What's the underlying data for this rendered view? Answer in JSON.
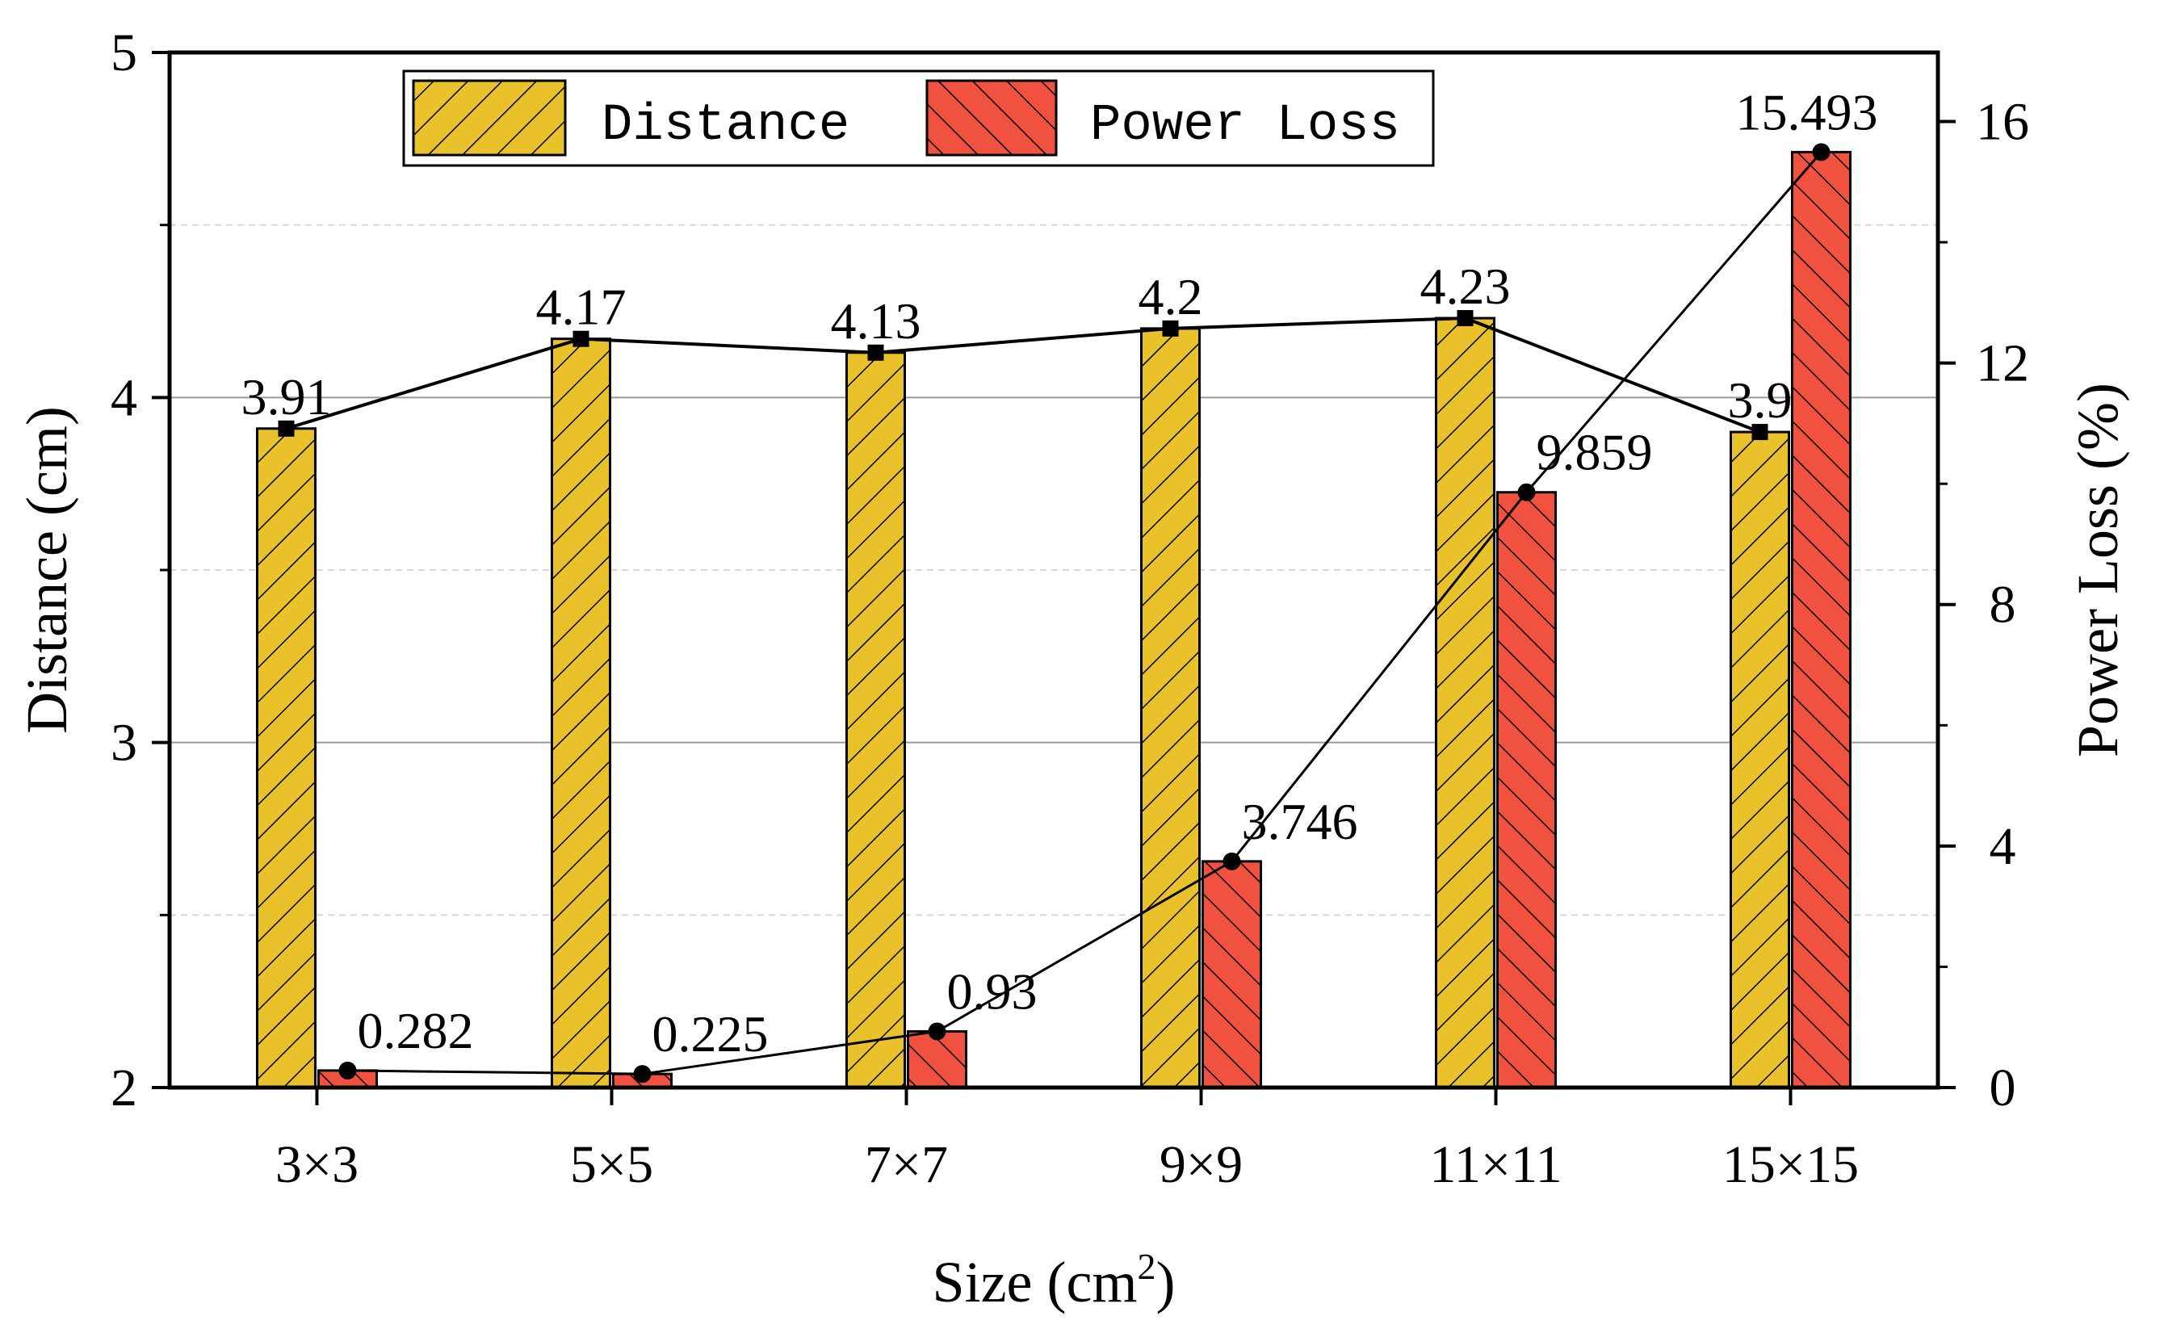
{
  "chart_data": {
    "type": "bar",
    "categories": [
      "3×3",
      "5×5",
      "7×7",
      "9×9",
      "11×11",
      "15×15"
    ],
    "series": [
      {
        "name": "Distance",
        "axis": "left",
        "values": [
          3.91,
          4.17,
          4.13,
          4.2,
          4.23,
          3.9
        ],
        "labels": [
          "3.91",
          "4.17",
          "4.13",
          "4.2",
          "4.23",
          "3.9"
        ],
        "color": "#E9C22B",
        "marker": "square",
        "connected_line": true
      },
      {
        "name": "Power Loss",
        "axis": "right",
        "values": [
          0.282,
          0.225,
          0.93,
          3.746,
          9.859,
          15.493
        ],
        "labels": [
          "0.282",
          "0.225",
          "0.93",
          "3.746",
          "9.859",
          "15.493"
        ],
        "color": "#F0523F",
        "marker": "circle",
        "connected_line": true
      }
    ],
    "xlabel": "Size (cm",
    "xlabel_superscript": "2",
    "xlabel_suffix": ")",
    "ylabel": "Distance (cm)",
    "ylabel_right": "Power Loss (%)",
    "ylim": [
      2,
      5
    ],
    "ylim_right": [
      0,
      17.143
    ],
    "yticks": [
      2,
      3,
      4,
      5
    ],
    "yticks_right": [
      0,
      4,
      8,
      12,
      16
    ],
    "grid": true,
    "legend": {
      "position": "top-left",
      "entries": [
        "Distance",
        "Power Loss"
      ]
    }
  }
}
